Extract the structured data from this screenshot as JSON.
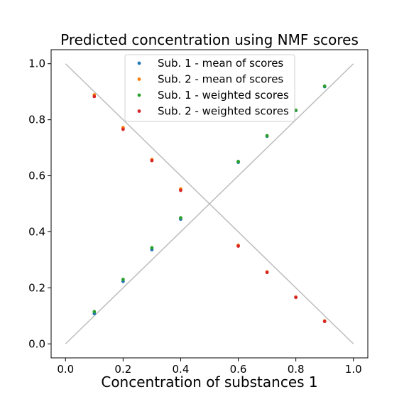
{
  "chart_data": {
    "type": "scatter",
    "title": "Predicted concentration using NMF scores",
    "xlabel": "Concentration of substances 1",
    "ylabel": "",
    "xlim": [
      -0.05,
      1.05
    ],
    "ylim": [
      -0.05,
      1.05
    ],
    "xticks": [
      "0.0",
      "0.2",
      "0.4",
      "0.6",
      "0.8",
      "1.0"
    ],
    "yticks": [
      "0.0",
      "0.2",
      "0.4",
      "0.6",
      "0.8",
      "1.0"
    ],
    "grid": false,
    "legend_position": "top-center",
    "reference_lines": [
      {
        "x": [
          0.0,
          1.0
        ],
        "y": [
          0.0,
          1.0
        ],
        "color": "#bdbdbd"
      },
      {
        "x": [
          0.0,
          1.0
        ],
        "y": [
          1.0,
          0.0
        ],
        "color": "#bdbdbd"
      }
    ],
    "series": [
      {
        "name": "Sub. 1 - mean of scores",
        "color": "#1f77b4",
        "x": [
          0.1,
          0.2,
          0.3,
          0.4,
          0.6,
          0.7,
          0.8,
          0.9
        ],
        "y": [
          0.108,
          0.223,
          0.336,
          0.445,
          0.648,
          0.741,
          0.833,
          0.918
        ]
      },
      {
        "name": "Sub. 2 - mean of scores",
        "color": "#ff7f0e",
        "x": [
          0.1,
          0.2,
          0.3,
          0.4,
          0.6,
          0.7,
          0.8,
          0.9
        ],
        "y": [
          0.889,
          0.772,
          0.658,
          0.553,
          0.352,
          0.257,
          0.167,
          0.082
        ]
      },
      {
        "name": "Sub. 1 - weighted scores",
        "color": "#2ca02c",
        "x": [
          0.1,
          0.2,
          0.3,
          0.4,
          0.6,
          0.7,
          0.8,
          0.9
        ],
        "y": [
          0.115,
          0.23,
          0.343,
          0.45,
          0.651,
          0.743,
          0.834,
          0.92
        ]
      },
      {
        "name": "Sub. 2 - weighted scores",
        "color": "#d62728",
        "x": [
          0.1,
          0.2,
          0.3,
          0.4,
          0.6,
          0.7,
          0.8,
          0.9
        ],
        "y": [
          0.883,
          0.766,
          0.654,
          0.548,
          0.349,
          0.255,
          0.166,
          0.08
        ]
      }
    ]
  }
}
